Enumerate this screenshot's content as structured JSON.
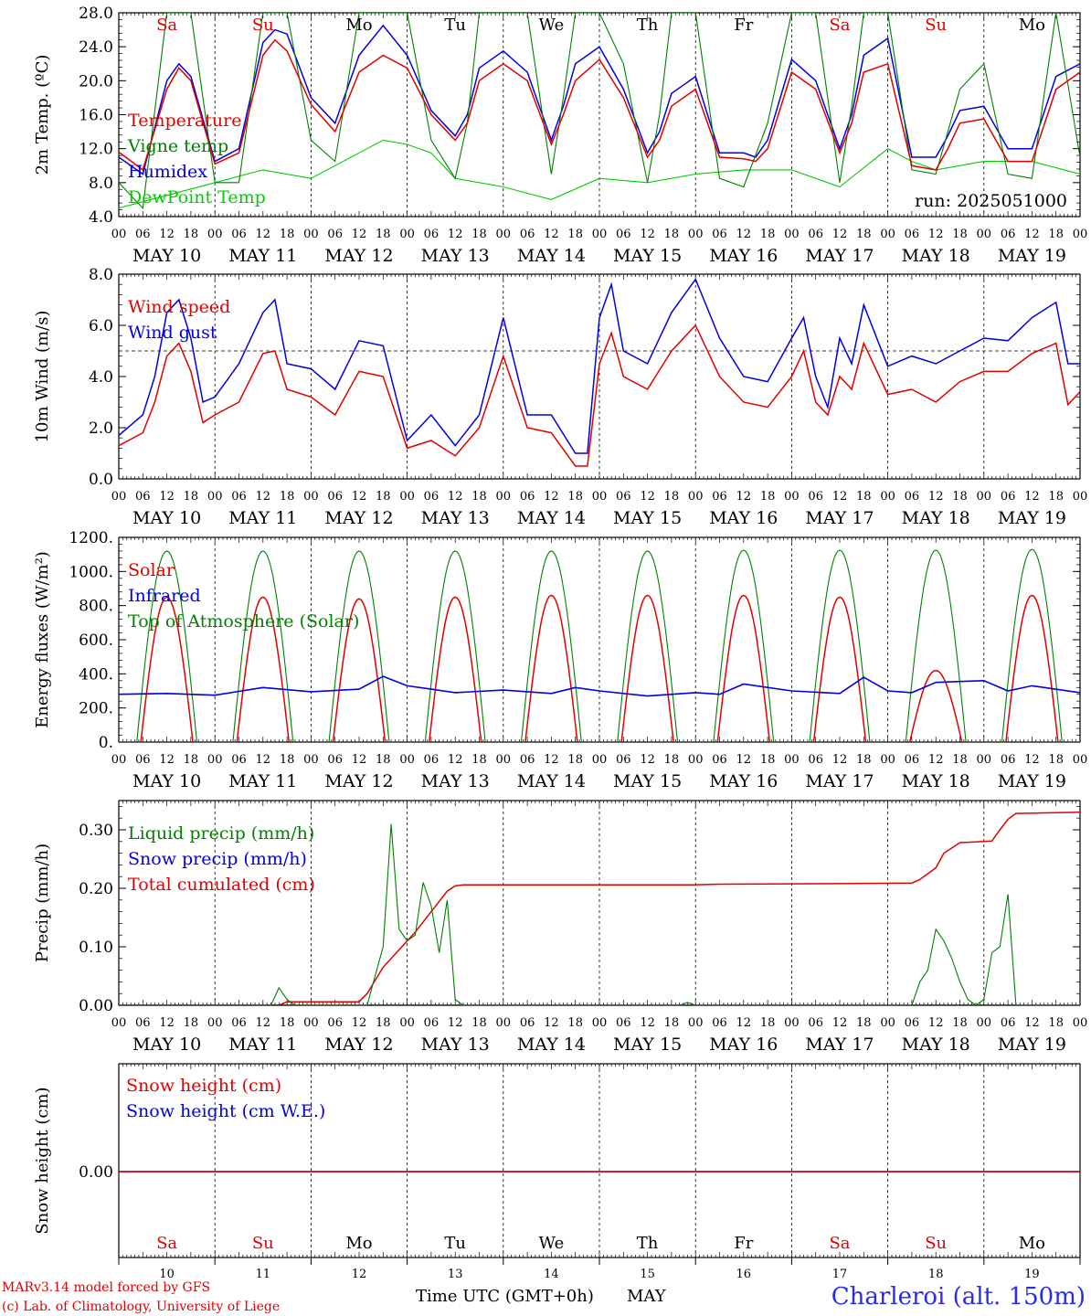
{
  "run_label": "run: 2025051000",
  "footer": {
    "model_line": "MARv3.14 model forced by GFS",
    "lab_line": "(c) Lab. of Climatology, University of Liege",
    "time_axis_label": "Time UTC (GMT+0h)",
    "month_label": "MAY",
    "station": "Charleroi (alt. 150m)"
  },
  "days": [
    "MAY 10",
    "MAY 11",
    "MAY 12",
    "MAY 13",
    "MAY 14",
    "MAY 15",
    "MAY 16",
    "MAY 17",
    "MAY 18",
    "MAY 19"
  ],
  "day_numbers": [
    "10",
    "11",
    "12",
    "13",
    "14",
    "15",
    "16",
    "17",
    "18",
    "19"
  ],
  "weekdays": [
    "Sa",
    "Su",
    "Mo",
    "Tu",
    "We",
    "Th",
    "Fr",
    "Sa",
    "Su",
    "Mo"
  ],
  "weekday_colors": [
    "#e00000",
    "#e00000",
    "#000000",
    "#000000",
    "#000000",
    "#000000",
    "#000000",
    "#e00000",
    "#e00000",
    "#000000"
  ],
  "hour_ticks": [
    "00",
    "06",
    "12",
    "18"
  ],
  "final_tick": "00",
  "colors": {
    "red": "#e00000",
    "blue": "#0000e0",
    "green": "#008000",
    "lightgreen": "#00cc00",
    "black": "#000000"
  },
  "chart_data": [
    {
      "id": "temperature",
      "type": "line",
      "ylabel": "2m Temp. (ºC)",
      "ylim": [
        4,
        28
      ],
      "yticks": [
        "4.0",
        "8.0",
        "12.0",
        "16.0",
        "20.0",
        "24.0",
        "28.0"
      ],
      "x_unit": "hours since MAY 10 00 UTC",
      "series": [
        {
          "name": "Temperature",
          "color": "#e00000",
          "x": [
            0,
            6,
            12,
            15,
            18,
            24,
            30,
            36,
            39,
            42,
            48,
            54,
            60,
            66,
            72,
            78,
            84,
            87,
            90,
            96,
            102,
            108,
            111,
            114,
            120,
            126,
            132,
            135,
            138,
            144,
            150,
            156,
            159,
            162,
            168,
            174,
            180,
            183,
            186,
            192,
            198,
            204,
            207,
            210,
            216,
            222,
            228,
            234,
            240
          ],
          "y": [
            11.6,
            9.5,
            19.0,
            21.5,
            20.0,
            10.2,
            11.5,
            23.0,
            24.8,
            23.5,
            17.2,
            14.0,
            21.0,
            23.0,
            21.5,
            16.0,
            13.0,
            15.0,
            20.0,
            22.0,
            20.0,
            12.5,
            16.0,
            20.0,
            22.5,
            18.0,
            11.0,
            13.0,
            17.0,
            19.0,
            11.0,
            10.8,
            10.5,
            12.0,
            21.0,
            19.0,
            11.5,
            15.0,
            21.0,
            22.0,
            10.0,
            9.5,
            12.0,
            15.0,
            15.5,
            10.5,
            10.5,
            19.0,
            21.0
          ]
        },
        {
          "name": "Vigne temp",
          "color": "#008000",
          "x": [
            0,
            6,
            12,
            15,
            18,
            24,
            30,
            36,
            39,
            42,
            48,
            54,
            60,
            66,
            72,
            78,
            84,
            87,
            90,
            96,
            102,
            108,
            111,
            114,
            120,
            126,
            132,
            135,
            138,
            144,
            150,
            156,
            162,
            168,
            174,
            180,
            183,
            186,
            192,
            198,
            204,
            210,
            216,
            222,
            228,
            234,
            240
          ],
          "y": [
            8.0,
            5.0,
            28.0,
            28.0,
            28.0,
            8.0,
            8.0,
            28.0,
            28.0,
            28.0,
            13.0,
            10.5,
            28.0,
            28.0,
            28.0,
            13.0,
            8.5,
            15.0,
            28.0,
            28.0,
            28.0,
            9.0,
            18.0,
            28.0,
            28.0,
            22.0,
            8.0,
            16.0,
            28.0,
            28.0,
            8.5,
            7.5,
            15.0,
            28.0,
            28.0,
            8.0,
            17.0,
            28.0,
            28.0,
            9.5,
            9.0,
            19.0,
            22.0,
            9.0,
            8.5,
            28.0,
            11.0
          ]
        },
        {
          "name": "Humidex",
          "color": "#0000e0",
          "x": [
            0,
            6,
            12,
            15,
            18,
            24,
            30,
            36,
            39,
            42,
            48,
            54,
            60,
            66,
            72,
            78,
            84,
            87,
            90,
            96,
            102,
            108,
            111,
            114,
            120,
            126,
            132,
            135,
            138,
            144,
            150,
            156,
            159,
            162,
            168,
            174,
            180,
            183,
            186,
            192,
            198,
            204,
            207,
            210,
            216,
            222,
            228,
            234,
            240
          ],
          "y": [
            11.0,
            9.0,
            20.0,
            22.0,
            20.5,
            10.5,
            12.0,
            24.5,
            26.0,
            25.5,
            18.0,
            15.0,
            23.0,
            26.5,
            23.0,
            16.5,
            13.5,
            16.0,
            21.5,
            23.5,
            21.0,
            13.0,
            17.0,
            22.0,
            24.0,
            19.0,
            11.5,
            14.0,
            18.5,
            20.5,
            11.5,
            11.5,
            11.0,
            13.0,
            22.5,
            20.0,
            12.0,
            16.0,
            23.0,
            25.0,
            11.0,
            11.0,
            13.5,
            16.5,
            17.0,
            12.0,
            12.0,
            20.5,
            22.0
          ]
        },
        {
          "name": "DewPoint Temp",
          "color": "#00cc00",
          "x": [
            0,
            12,
            24,
            36,
            48,
            60,
            66,
            72,
            78,
            84,
            96,
            108,
            120,
            132,
            144,
            156,
            168,
            180,
            192,
            198,
            204,
            216,
            228,
            240
          ],
          "y": [
            5.0,
            6.5,
            8.0,
            9.5,
            8.5,
            11.5,
            13.0,
            12.5,
            11.5,
            8.5,
            7.5,
            6.0,
            8.5,
            8.0,
            9.0,
            9.5,
            9.5,
            7.5,
            12.0,
            10.5,
            9.5,
            10.5,
            10.5,
            9.0
          ]
        }
      ]
    },
    {
      "id": "wind",
      "type": "line",
      "ylabel": "10m Wind (m/s)",
      "ylim": [
        0,
        8
      ],
      "yticks": [
        "0.0",
        "2.0",
        "4.0",
        "6.0",
        "8.0"
      ],
      "reference_line": 5.0,
      "x_unit": "hours since MAY 10 00 UTC",
      "series": [
        {
          "name": "Wind speed",
          "color": "#e00000",
          "x": [
            0,
            6,
            9,
            12,
            15,
            18,
            21,
            24,
            30,
            36,
            39,
            42,
            48,
            54,
            60,
            66,
            72,
            78,
            84,
            90,
            96,
            102,
            108,
            114,
            117,
            120,
            123,
            126,
            132,
            138,
            144,
            150,
            156,
            162,
            168,
            171,
            174,
            177,
            180,
            183,
            186,
            192,
            198,
            204,
            210,
            216,
            222,
            228,
            234,
            237,
            240
          ],
          "y": [
            1.3,
            1.8,
            3.0,
            4.8,
            5.3,
            4.2,
            2.2,
            2.5,
            3.0,
            4.9,
            5.0,
            3.5,
            3.2,
            2.5,
            4.2,
            4.0,
            1.2,
            1.5,
            0.9,
            2.0,
            4.8,
            2.0,
            1.8,
            0.5,
            0.5,
            4.5,
            5.7,
            4.0,
            3.5,
            5.0,
            6.0,
            4.0,
            3.0,
            2.8,
            4.0,
            5.0,
            3.0,
            2.5,
            4.0,
            3.5,
            5.3,
            3.3,
            3.5,
            3.0,
            3.8,
            4.2,
            4.2,
            4.9,
            5.3,
            2.9,
            3.4
          ]
        },
        {
          "name": "Wind gust",
          "color": "#0000e0",
          "x": [
            0,
            6,
            9,
            12,
            15,
            18,
            21,
            24,
            30,
            36,
            39,
            42,
            48,
            54,
            60,
            66,
            72,
            78,
            84,
            90,
            96,
            102,
            108,
            114,
            117,
            120,
            123,
            126,
            132,
            138,
            144,
            150,
            156,
            162,
            168,
            171,
            174,
            177,
            180,
            183,
            186,
            192,
            198,
            204,
            210,
            216,
            222,
            228,
            234,
            237,
            240
          ],
          "y": [
            1.7,
            2.5,
            4.0,
            6.5,
            7.0,
            5.5,
            3.0,
            3.2,
            4.5,
            6.5,
            7.0,
            4.5,
            4.3,
            3.5,
            5.4,
            5.2,
            1.5,
            2.5,
            1.3,
            2.5,
            6.3,
            2.5,
            2.5,
            1.0,
            1.0,
            6.3,
            7.6,
            5.0,
            4.5,
            6.5,
            7.8,
            5.5,
            4.0,
            3.8,
            5.5,
            6.3,
            4.0,
            2.8,
            5.5,
            4.5,
            6.8,
            4.4,
            4.8,
            4.5,
            5.0,
            5.5,
            5.4,
            6.3,
            6.9,
            4.5,
            4.5
          ]
        }
      ]
    },
    {
      "id": "energy",
      "type": "line",
      "ylabel": "Energy fluxes (W/m²)",
      "ylim": [
        0,
        1200
      ],
      "yticks": [
        "0.",
        "200.",
        "400.",
        "600.",
        "800.",
        "1000.",
        "1200."
      ],
      "x_unit": "hours since MAY 10 00 UTC",
      "daily_peaks": {
        "top_of_atmosphere": [
          1120,
          1120,
          1120,
          1120,
          1120,
          1120,
          1125,
          1125,
          1125,
          1130
        ],
        "solar": [
          850,
          850,
          840,
          850,
          860,
          860,
          860,
          850,
          420,
          860
        ]
      },
      "series": [
        {
          "name": "Solar",
          "color": "#e00000"
        },
        {
          "name": "Infrared",
          "color": "#0000e0",
          "x": [
            0,
            12,
            24,
            36,
            48,
            60,
            66,
            72,
            78,
            84,
            96,
            108,
            114,
            120,
            132,
            144,
            150,
            156,
            168,
            180,
            186,
            192,
            198,
            204,
            210,
            216,
            222,
            228,
            240
          ],
          "y": [
            280,
            285,
            275,
            320,
            295,
            310,
            385,
            330,
            310,
            290,
            305,
            285,
            320,
            300,
            270,
            290,
            280,
            340,
            300,
            285,
            380,
            300,
            290,
            350,
            355,
            360,
            300,
            330,
            290
          ]
        },
        {
          "name": "Top of Atmosphere (Solar)",
          "color": "#008000"
        }
      ]
    },
    {
      "id": "precip",
      "type": "line",
      "ylabel": "Precip (mm/h)",
      "ylim": [
        0,
        0.35
      ],
      "yticks": [
        "0.00",
        "0.10",
        "0.20",
        "0.30"
      ],
      "x_unit": "hours since MAY 10 00 UTC",
      "series": [
        {
          "name": "Liquid precip (mm/h)",
          "color": "#008000",
          "x": [
            0,
            38,
            40,
            42,
            44,
            62,
            64,
            66,
            68,
            70,
            72,
            74,
            76,
            78,
            80,
            82,
            84,
            86,
            140,
            142,
            144,
            198,
            200,
            202,
            204,
            206,
            208,
            210,
            212,
            214,
            216,
            218,
            220,
            222,
            224,
            240
          ],
          "y": [
            0,
            0,
            0.03,
            0.01,
            0,
            0,
            0.05,
            0.1,
            0.31,
            0.13,
            0.11,
            0.12,
            0.21,
            0.17,
            0.09,
            0.18,
            0.01,
            0,
            0,
            0.005,
            0,
            0,
            0.04,
            0.06,
            0.13,
            0.11,
            0.08,
            0.04,
            0.01,
            0.0,
            0.01,
            0.09,
            0.1,
            0.19,
            0,
            0
          ]
        },
        {
          "name": "Snow precip (mm/h)",
          "color": "#0000e0",
          "x": [
            0,
            240
          ],
          "y": [
            0,
            0
          ]
        },
        {
          "name": "Total cumulated (cm)",
          "color": "#e00000",
          "x": [
            0,
            40,
            42,
            60,
            62,
            66,
            70,
            74,
            78,
            82,
            84,
            86,
            120,
            144,
            150,
            180,
            198,
            200,
            204,
            206,
            210,
            216,
            218,
            220,
            222,
            224,
            240
          ],
          "y": [
            0,
            0,
            0.006,
            0.006,
            0.02,
            0.065,
            0.095,
            0.125,
            0.16,
            0.195,
            0.204,
            0.206,
            0.206,
            0.206,
            0.207,
            0.208,
            0.209,
            0.215,
            0.235,
            0.26,
            0.278,
            0.28,
            0.281,
            0.3,
            0.318,
            0.328,
            0.33
          ]
        }
      ]
    },
    {
      "id": "snow",
      "type": "line",
      "ylabel": "Snow height (cm)",
      "yticks": [
        "0.00"
      ],
      "x_unit": "hours since MAY 10 00 UTC",
      "series": [
        {
          "name": "Snow height (cm)",
          "color": "#e00000",
          "x": [
            0,
            240
          ],
          "y": [
            0,
            0
          ]
        },
        {
          "name": "Snow height (cm W.E.)",
          "color": "#0000e0",
          "x": [
            0,
            240
          ],
          "y": [
            0,
            0
          ]
        }
      ]
    }
  ]
}
